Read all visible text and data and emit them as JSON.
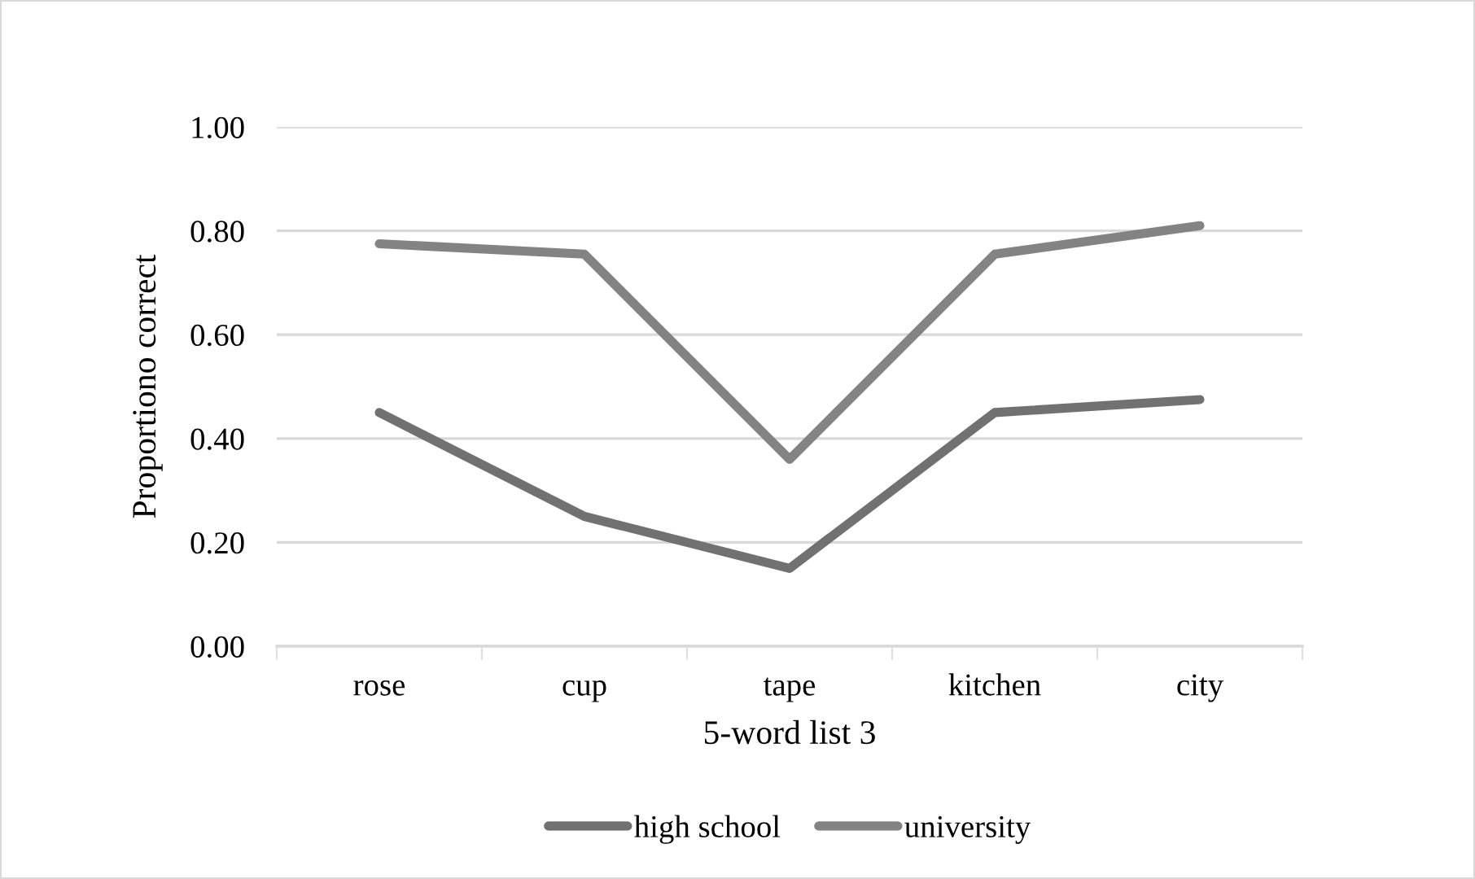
{
  "chart_data": {
    "type": "line",
    "xlabel": "5-word list 3",
    "ylabel": "Proportiono correct",
    "categories": [
      "rose",
      "cup",
      "tape",
      "kitchen",
      "city"
    ],
    "series": [
      {
        "name": "high school",
        "color": "#717171",
        "values": [
          0.45,
          0.25,
          0.15,
          0.45,
          0.475
        ]
      },
      {
        "name": "university",
        "color": "#838383",
        "values": [
          0.775,
          0.755,
          0.36,
          0.755,
          0.81
        ]
      }
    ],
    "ylim": [
      0,
      1
    ],
    "yticks": [
      {
        "value": 0,
        "label": "0.00"
      },
      {
        "value": 0.2,
        "label": "0.20"
      },
      {
        "value": 0.4,
        "label": "0.40"
      },
      {
        "value": 0.6,
        "label": "0.60"
      },
      {
        "value": 0.8,
        "label": "0.80"
      },
      {
        "value": 1,
        "label": "1.00"
      }
    ],
    "grid": "y",
    "legend": "bottom",
    "marker": "none",
    "line_style": "solid"
  }
}
